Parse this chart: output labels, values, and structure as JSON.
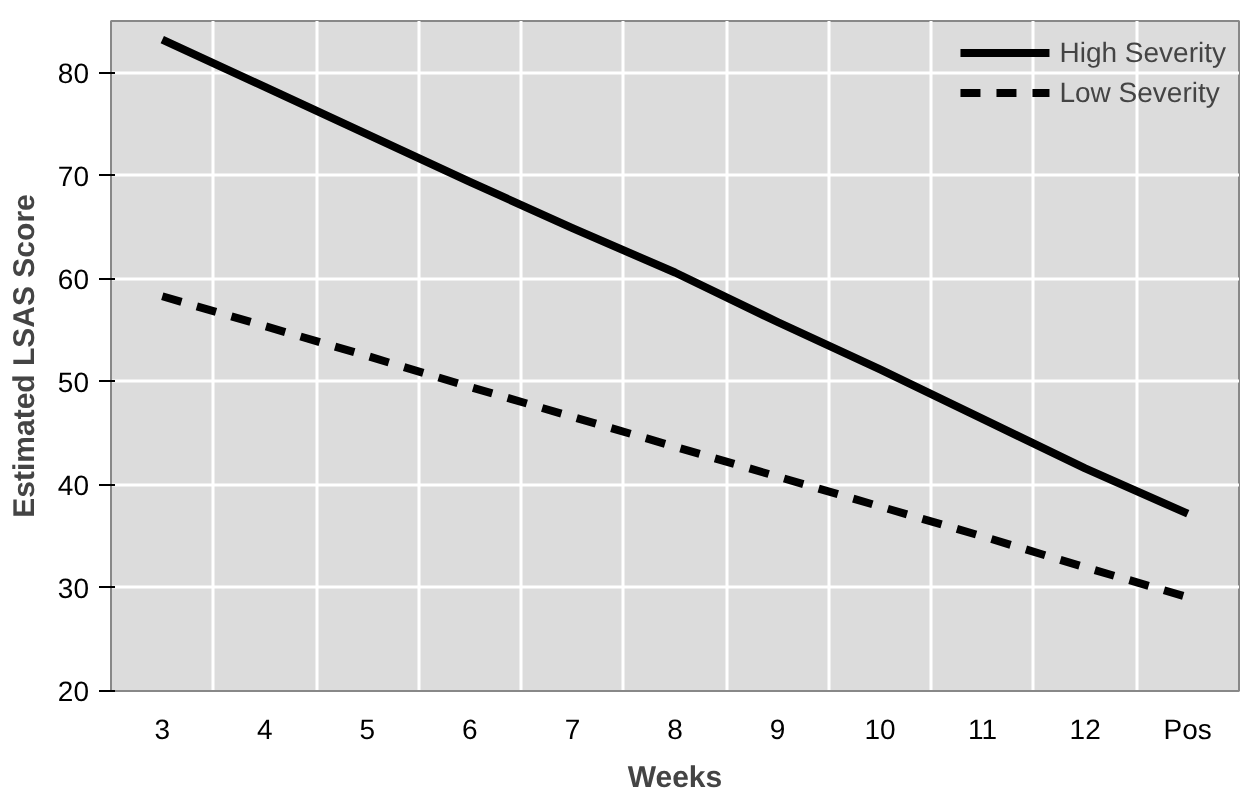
{
  "chart_data": {
    "type": "line",
    "xlabel": "Weeks",
    "ylabel": "Estimated LSAS Score",
    "categories": [
      "3",
      "4",
      "5",
      "6",
      "7",
      "8",
      "9",
      "10",
      "11",
      "12",
      "Pos"
    ],
    "series": [
      {
        "name": "High Severity",
        "color": "#000000",
        "line_style": "solid",
        "values": [
          83.2,
          78.6,
          74.0,
          69.4,
          64.9,
          60.6,
          55.8,
          51.2,
          46.4,
          41.6,
          37.2
        ]
      },
      {
        "name": "Low Severity",
        "color": "#000000",
        "line_style": "dashed",
        "values": [
          58.3,
          55.4,
          52.5,
          49.5,
          46.6,
          43.7,
          40.8,
          37.9,
          35.0,
          32.0,
          29.1
        ]
      }
    ],
    "ylim": [
      20,
      85
    ],
    "yticks": [
      20,
      30,
      40,
      50,
      60,
      70,
      80
    ],
    "grid": true,
    "legend": "top right",
    "marker": "none"
  }
}
